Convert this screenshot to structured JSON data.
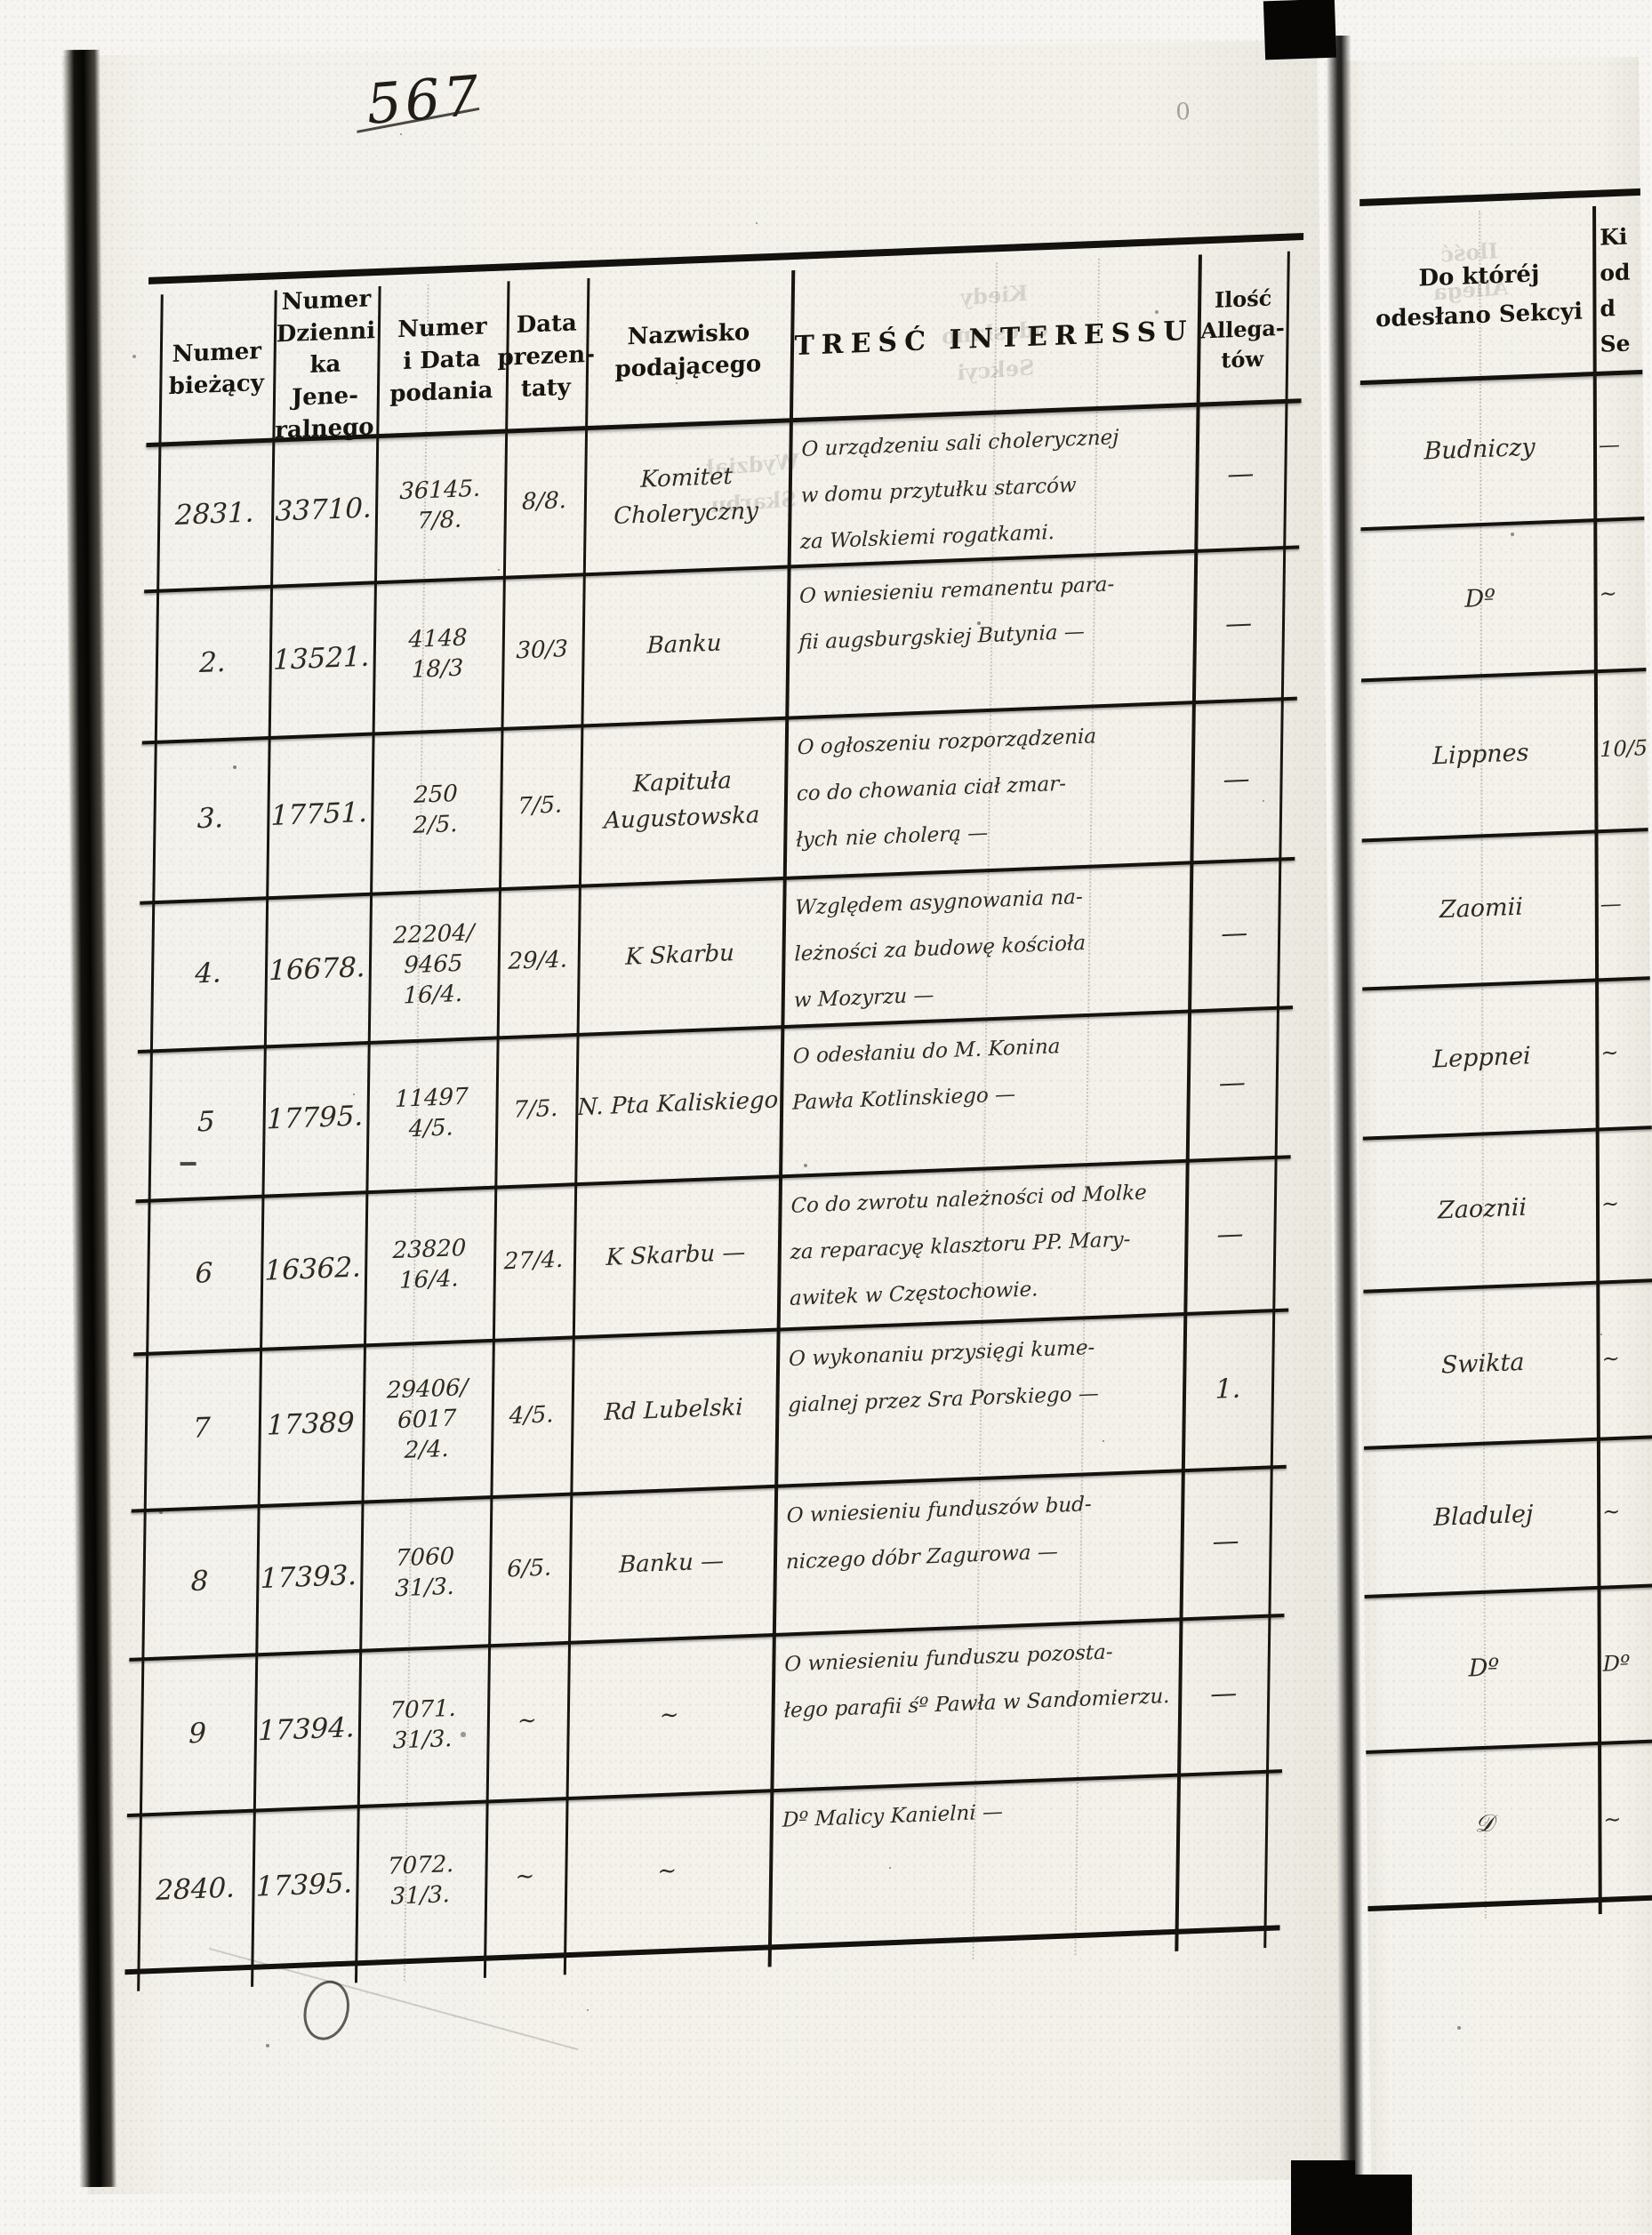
{
  "annotations": {
    "page_number": "567",
    "corner_mark": "0"
  },
  "left_table": {
    "headers": [
      [
        "Numer",
        "bieżący"
      ],
      [
        "Numer",
        "Dzienni",
        "ka Jene-",
        "ralnego"
      ],
      [
        "Numer",
        "i Data",
        "podania"
      ],
      [
        "Data",
        "prezen-",
        "taty"
      ],
      [
        "Nazwisko",
        "podającego"
      ],
      [
        "TREŚĆ INTERESSU"
      ],
      [
        "Ilość",
        "Allega-",
        "tów"
      ]
    ],
    "rows": [
      {
        "nr": "2831.",
        "dziennik": "33710.",
        "podanie": [
          "36145.",
          "7/8."
        ],
        "prezentata": "8/8.",
        "nazwisko": [
          "Komitet",
          "Choleryczny"
        ],
        "tresc": [
          "O urządzeniu sali cholerycznej",
          "w domu przytułku starców",
          "za Wolskiemi rogatkami."
        ],
        "ilosc": "—"
      },
      {
        "nr": "2.",
        "dziennik": "13521.",
        "podanie": [
          "4148",
          "18/3"
        ],
        "prezentata": "30/3",
        "nazwisko": [
          "Banku"
        ],
        "tresc": [
          "O wniesieniu remanentu para-",
          "fii augsburgskiej Butynia —"
        ],
        "ilosc": "—"
      },
      {
        "nr": "3.",
        "dziennik": "17751.",
        "podanie": [
          "250",
          "2/5."
        ],
        "prezentata": "7/5.",
        "nazwisko": [
          "Kapituła",
          "Augustowska"
        ],
        "tresc": [
          "O ogłoszeniu rozporządzenia",
          "co do chowania ciał zmar-",
          "łych nie cholerą —"
        ],
        "ilosc": "—"
      },
      {
        "nr": "4.",
        "dziennik": "16678.",
        "podanie": [
          "22204/",
          "9465",
          "16/4."
        ],
        "prezentata": "29/4.",
        "nazwisko": [
          "K Skarbu"
        ],
        "tresc": [
          "Względem asygnowania na-",
          "leżności za budowę kościoła",
          "w Mozyrzu —"
        ],
        "ilosc": "—"
      },
      {
        "nr": "5",
        "dziennik": "17795.",
        "podanie": [
          "11497",
          "4/5."
        ],
        "prezentata": "7/5.",
        "nazwisko": [
          "N. Pta Kaliskiego"
        ],
        "tresc": [
          "O odesłaniu do M. Konina",
          "Pawła Kotlinskiego —"
        ],
        "ilosc": "—"
      },
      {
        "nr": "6",
        "dziennik": "16362.",
        "podanie": [
          "23820",
          "16/4."
        ],
        "prezentata": "27/4.",
        "nazwisko": [
          "K Skarbu —"
        ],
        "tresc": [
          "Co do zwrotu należności od Molke",
          "za reparacyę klasztoru PP. Mary-",
          "awitek w Częstochowie."
        ],
        "ilosc": "—"
      },
      {
        "nr": "7",
        "dziennik": "17389",
        "podanie": [
          "29406/",
          "6017",
          "2/4."
        ],
        "prezentata": "4/5.",
        "nazwisko": [
          "Rd Lubelski"
        ],
        "tresc": [
          "O wykonaniu przysięgi kume-",
          "gialnej przez Sra Porskiego —"
        ],
        "ilosc": "1."
      },
      {
        "nr": "8",
        "dziennik": "17393.",
        "podanie": [
          "7060",
          "31/3."
        ],
        "prezentata": "6/5.",
        "nazwisko": [
          "Banku —"
        ],
        "tresc": [
          "O wniesieniu funduszów bud-",
          "niczego dóbr Zagurowa —"
        ],
        "ilosc": "—"
      },
      {
        "nr": "9",
        "dziennik": "17394.",
        "podanie": [
          "7071.",
          "31/3."
        ],
        "prezentata": "∼",
        "nazwisko": [
          "∼"
        ],
        "tresc": [
          "O wniesieniu funduszu pozosta-",
          "łego parafii śº Pawła w Sandomierzu."
        ],
        "ilosc": "—"
      },
      {
        "nr": "2840.",
        "dziennik": "17395.",
        "podanie": [
          "7072.",
          "31/3."
        ],
        "prezentata": "∼",
        "nazwisko": [
          "∼"
        ],
        "tresc": [
          "Dº Malicy Kanielni —"
        ],
        "ilosc": ""
      }
    ]
  },
  "right_table": {
    "header_col1": [
      "Do któréj",
      "odesłano Sekcyi"
    ],
    "header_col2": [
      "Ki",
      "od",
      "d",
      "Se"
    ],
    "rows": [
      {
        "sekcya": "Budniczy",
        "kiedy": "—"
      },
      {
        "sekcya": "Dº",
        "kiedy": "∼"
      },
      {
        "sekcya": "Lippnes",
        "kiedy": "10/5"
      },
      {
        "sekcya": "Zaomii",
        "kiedy": "—"
      },
      {
        "sekcya": "Leppnei",
        "kiedy": "∼"
      },
      {
        "sekcya": "Zaoznii",
        "kiedy": "∼"
      },
      {
        "sekcya": "Swikta",
        "kiedy": "∼"
      },
      {
        "sekcya": "Bladulej",
        "kiedy": "∼"
      },
      {
        "sekcya": "Dº",
        "kiedy": "Dº"
      },
      {
        "sekcya": "𝒟",
        "kiedy": "∼"
      }
    ]
  },
  "bleed_through": {
    "header_ghost": [
      "Kiedy",
      "odesłano",
      "Sekcyi"
    ],
    "body_ghost": [
      "Wydział",
      "Skarbu"
    ],
    "right_ghost": [
      "Ilość",
      "Allega"
    ]
  }
}
